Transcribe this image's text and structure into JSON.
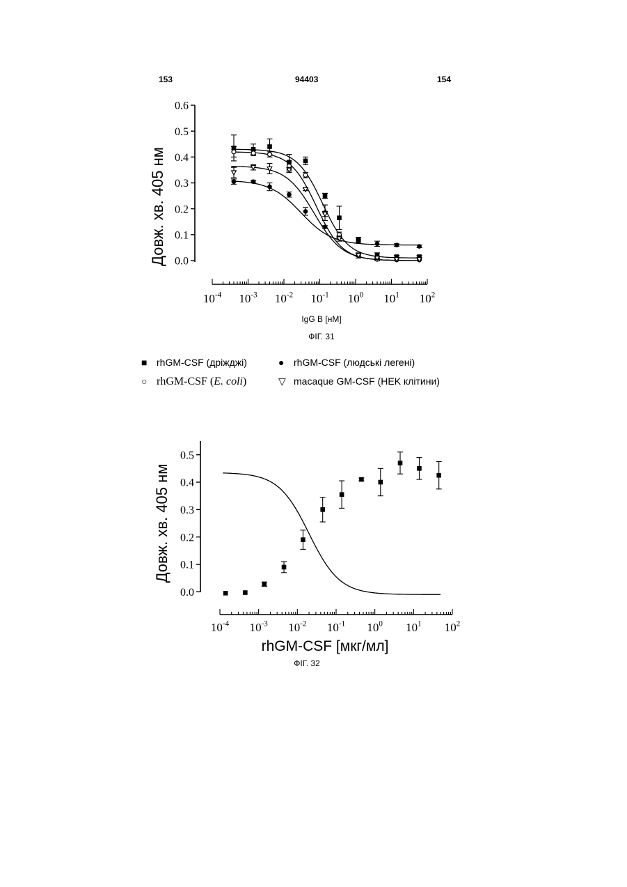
{
  "header": {
    "left_page": "153",
    "patent_number": "94403",
    "right_page": "154"
  },
  "legend": {
    "items": [
      {
        "marker": "filled-square",
        "label": "rhGM-CSF (дріжджі)"
      },
      {
        "marker": "filled-circle",
        "label": "rhGM-CSF (людські легені)"
      },
      {
        "marker": "open-circle",
        "label_prefix": "rhGM-CSF (",
        "label_italic": "E. coli",
        "label_suffix": ")"
      },
      {
        "marker": "open-triangle-down",
        "label": "macaque GM-CSF (HEK клітини)"
      }
    ]
  },
  "chart_data": [
    {
      "type": "scatter",
      "caption": "ФІГ. 31",
      "xlabel": "IgG B [нМ]",
      "ylabel": "Довж. хв. 405 нм",
      "xscale": "log",
      "xlim": [
        0.0001,
        100
      ],
      "ylim": [
        0,
        0.6
      ],
      "x_tick_labels": [
        "10^-4",
        "10^-3",
        "10^-2",
        "10^-1",
        "10^0",
        "10^1",
        "10^2"
      ],
      "y_tick_labels": [
        "0.0",
        "0.1",
        "0.2",
        "0.3",
        "0.4",
        "0.5",
        "0.6"
      ],
      "series": [
        {
          "name": "rhGM-CSF (дріжджі)",
          "marker": "filled-square",
          "x": [
            0.0004,
            0.0014,
            0.004,
            0.014,
            0.04,
            0.14,
            0.35,
            1.2,
            4,
            14,
            60
          ],
          "y": [
            0.435,
            0.43,
            0.44,
            0.38,
            0.385,
            0.25,
            0.165,
            0.08,
            0.02,
            0.015,
            0.015
          ],
          "err": [
            0.05,
            0.02,
            0.03,
            0.03,
            0.015,
            0.01,
            0.045,
            0.01,
            0.01,
            0.005,
            0.005
          ],
          "fit": {
            "top": 0.43,
            "bottom": 0.01,
            "ec50": 0.12,
            "hill": 1.2
          }
        },
        {
          "name": "rhGM-CSF (людські легені)",
          "marker": "filled-circle",
          "x": [
            0.0004,
            0.0014,
            0.004,
            0.014,
            0.04,
            0.14,
            0.35,
            1.2,
            4,
            14,
            60
          ],
          "y": [
            0.305,
            0.305,
            0.285,
            0.255,
            0.19,
            0.13,
            0.09,
            0.075,
            0.065,
            0.06,
            0.055
          ],
          "err": [
            0.01,
            0.005,
            0.015,
            0.01,
            0.015,
            0.005,
            0.005,
            0.005,
            0.01,
            0.005,
            0.005
          ],
          "fit": {
            "top": 0.31,
            "bottom": 0.06,
            "ec50": 0.03,
            "hill": 1.0
          }
        },
        {
          "name": "rhGM-CSF (E. coli)",
          "marker": "open-circle",
          "x": [
            0.0004,
            0.0014,
            0.004,
            0.014,
            0.04,
            0.14,
            0.35,
            1.2,
            4,
            14,
            60
          ],
          "y": [
            0.42,
            0.415,
            0.41,
            0.365,
            0.33,
            0.185,
            0.1,
            0.02,
            0.005,
            0.003,
            0.003
          ],
          "err": [
            0.02,
            0.01,
            0.01,
            0.02,
            0.01,
            0.03,
            0.01,
            0.01,
            0.005,
            0.003,
            0.003
          ],
          "fit": {
            "top": 0.42,
            "bottom": 0.0,
            "ec50": 0.08,
            "hill": 1.2
          }
        },
        {
          "name": "macaque GM-CSF (HEK клітини)",
          "marker": "open-triangle-down",
          "x": [
            0.0004,
            0.0014,
            0.004,
            0.014,
            0.04,
            0.14,
            0.35,
            1.2,
            4,
            14,
            60
          ],
          "y": [
            0.34,
            0.36,
            0.355,
            0.35,
            0.275,
            0.18,
            0.085,
            0.02,
            0.01,
            0.005,
            0.005
          ],
          "err": [
            0.02,
            0.01,
            0.02,
            0.01,
            0.005,
            0.01,
            0.01,
            0.005,
            0.005,
            0.003,
            0.003
          ],
          "fit": {
            "top": 0.365,
            "bottom": 0.0,
            "ec50": 0.07,
            "hill": 1.1
          }
        }
      ]
    },
    {
      "type": "scatter",
      "caption": "ФІГ. 32",
      "xlabel": "rhGM-CSF [мкг/мл]",
      "ylabel": "Довж. хв. 405 нм",
      "xscale": "log",
      "xlim": [
        0.0001,
        100
      ],
      "ylim": [
        -0.05,
        0.55
      ],
      "x_tick_labels": [
        "10^-4",
        "10^-3",
        "10^-2",
        "10^-1",
        "10^0",
        "10^1",
        "10^2"
      ],
      "y_tick_labels": [
        "0.0",
        "0.1",
        "0.2",
        "0.3",
        "0.4",
        "0.5"
      ],
      "series": [
        {
          "name": "",
          "marker": "filled-square",
          "x": [
            0.00014,
            0.00045,
            0.0014,
            0.0045,
            0.014,
            0.045,
            0.14,
            0.45,
            1.4,
            4.5,
            14,
            45
          ],
          "y": [
            -0.005,
            -0.003,
            0.028,
            0.09,
            0.19,
            0.3,
            0.355,
            0.41,
            0.4,
            0.47,
            0.45,
            0.425
          ],
          "err": [
            0.003,
            0.003,
            0.008,
            0.02,
            0.035,
            0.045,
            0.05,
            0.005,
            0.05,
            0.04,
            0.04,
            0.05
          ],
          "fit": {
            "top": 0.435,
            "bottom": -0.01,
            "ec50": 0.02,
            "hill": 1.1
          }
        }
      ]
    }
  ]
}
